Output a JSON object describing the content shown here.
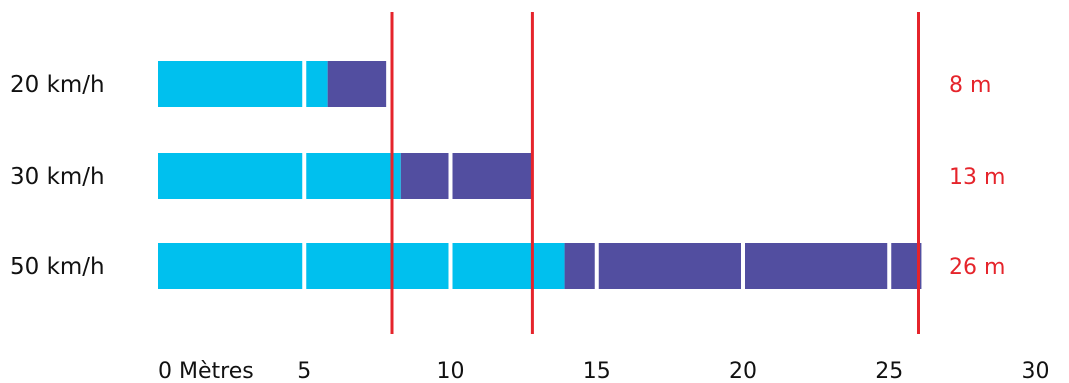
{
  "chart_data": {
    "type": "bar",
    "orientation": "horizontal",
    "stacked": true,
    "xunit_label": "Mètres",
    "categories": [
      "20 km/h",
      "30 km/h",
      "50 km/h"
    ],
    "series": [
      {
        "color": "#00c0ee",
        "values": [
          5.8,
          8.3,
          13.9
        ]
      },
      {
        "color": "#524ea0",
        "values": [
          2.0,
          4.5,
          12.2
        ]
      }
    ],
    "distance_labels": [
      "8 m",
      "13 m",
      "26 m"
    ],
    "reference_lines": [
      8.0,
      12.8,
      26.0
    ],
    "reference_color": "#e5242b",
    "xticks": [
      0,
      5,
      10,
      15,
      20,
      25,
      30
    ],
    "xlim": [
      0,
      30
    ],
    "segment_divider_every": 5,
    "grid": false,
    "legend": "none"
  }
}
